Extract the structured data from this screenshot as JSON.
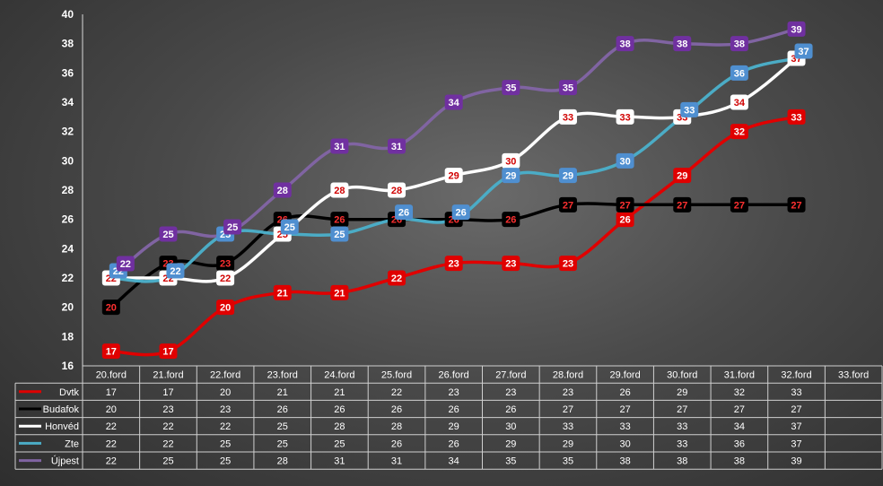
{
  "chart_data": {
    "type": "line",
    "title": "",
    "xlabel": "",
    "ylabel": "",
    "categories": [
      "20.ford",
      "21.ford",
      "22.ford",
      "23.ford",
      "24.ford",
      "25.ford",
      "26.ford",
      "27.ford",
      "28.ford",
      "29.ford",
      "30.ford",
      "31.ford",
      "32.ford",
      "33.ford"
    ],
    "ylim": [
      16,
      40
    ],
    "yticks": [
      "16",
      "18",
      "20",
      "22",
      "24",
      "26",
      "28",
      "30",
      "32",
      "34",
      "36",
      "38",
      "40"
    ],
    "grid": false,
    "legend": "data-table",
    "series": [
      {
        "name": "Dvtk",
        "color": "#e00000",
        "label_bg": "#e00000",
        "label_fg": "#ffffff",
        "values": [
          17,
          17,
          20,
          21,
          21,
          22,
          23,
          23,
          23,
          26,
          29,
          32,
          33,
          null
        ]
      },
      {
        "name": "Budafok",
        "color": "#000000",
        "label_bg": "#000000",
        "label_fg": "#ff3030",
        "values": [
          20,
          23,
          23,
          26,
          26,
          26,
          26,
          26,
          27,
          27,
          27,
          27,
          27,
          null
        ]
      },
      {
        "name": "Honvéd",
        "color": "#ffffff",
        "label_bg": "#ffffff",
        "label_fg": "#d00000",
        "values": [
          22,
          22,
          22,
          25,
          28,
          28,
          29,
          30,
          33,
          33,
          33,
          34,
          37,
          null
        ]
      },
      {
        "name": "Zte",
        "color": "#4bacc6",
        "label_bg": "#4f8fd0",
        "label_fg": "#ffffff",
        "values": [
          22,
          22,
          25,
          25,
          25,
          26,
          26,
          29,
          29,
          30,
          33,
          36,
          37,
          null
        ]
      },
      {
        "name": "Újpest",
        "color": "#8064a2",
        "label_bg": "#7030a0",
        "label_fg": "#ffffff",
        "values": [
          22,
          25,
          25,
          28,
          31,
          31,
          34,
          35,
          35,
          38,
          38,
          38,
          39,
          null
        ]
      }
    ]
  }
}
